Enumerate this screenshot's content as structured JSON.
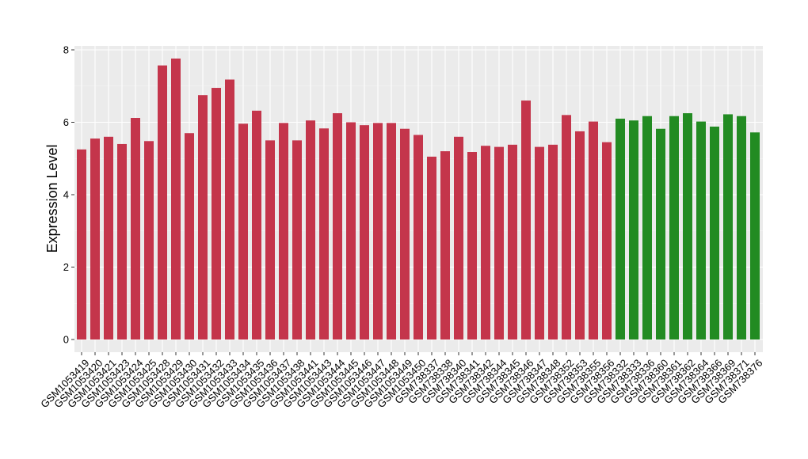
{
  "chart_data": {
    "type": "bar",
    "title": "",
    "xlabel": "",
    "ylabel": "Expression Level",
    "ylim": [
      0,
      8.1
    ],
    "yticks": [
      0,
      2,
      4,
      6,
      8
    ],
    "grid": true,
    "legend": "none",
    "categories": [
      "GSM1053419",
      "GSM1053420",
      "GSM1053421",
      "GSM1053423",
      "GSM1053424",
      "GSM1053425",
      "GSM1053428",
      "GSM1053429",
      "GSM1053430",
      "GSM1053431",
      "GSM1053432",
      "GSM1053433",
      "GSM1053434",
      "GSM1053435",
      "GSM1053436",
      "GSM1053437",
      "GSM1053438",
      "GSM1053441",
      "GSM1053443",
      "GSM1053444",
      "GSM1053445",
      "GSM1053446",
      "GSM1053447",
      "GSM1053448",
      "GSM1053449",
      "GSM1053450",
      "GSM738337",
      "GSM738338",
      "GSM738340",
      "GSM738341",
      "GSM738342",
      "GSM738344",
      "GSM738345",
      "GSM738346",
      "GSM738347",
      "GSM738348",
      "GSM738352",
      "GSM738353",
      "GSM738355",
      "GSM738356",
      "GSM738332",
      "GSM738333",
      "GSM738336",
      "GSM738360",
      "GSM738361",
      "GSM738362",
      "GSM738364",
      "GSM738366",
      "GSM738369",
      "GSM738371",
      "GSM738376"
    ],
    "values": [
      5.25,
      5.55,
      5.6,
      5.4,
      6.12,
      5.48,
      7.57,
      7.76,
      5.7,
      6.75,
      6.95,
      7.18,
      5.96,
      6.32,
      5.5,
      5.98,
      5.5,
      6.05,
      5.83,
      6.25,
      6.0,
      5.92,
      5.98,
      5.98,
      5.82,
      5.65,
      5.05,
      5.2,
      5.6,
      5.18,
      5.35,
      5.32,
      5.38,
      6.6,
      5.32,
      5.38,
      6.2,
      5.75,
      6.02,
      5.45,
      6.1,
      6.05,
      6.17,
      5.82,
      6.17,
      6.25,
      6.02,
      5.88,
      6.22,
      6.17,
      5.72
    ],
    "groups": [
      "red",
      "red",
      "red",
      "red",
      "red",
      "red",
      "red",
      "red",
      "red",
      "red",
      "red",
      "red",
      "red",
      "red",
      "red",
      "red",
      "red",
      "red",
      "red",
      "red",
      "red",
      "red",
      "red",
      "red",
      "red",
      "red",
      "red",
      "red",
      "red",
      "red",
      "red",
      "red",
      "red",
      "red",
      "red",
      "red",
      "red",
      "red",
      "red",
      "red",
      "green",
      "green",
      "green",
      "green",
      "green",
      "green",
      "green",
      "green",
      "green",
      "green",
      "green"
    ],
    "colors": {
      "red": "#c4354b",
      "green": "#228b22",
      "panel_bg": "#ebebeb",
      "grid_major": "#ffffff",
      "grid_minor": "#f5f5f5"
    }
  }
}
